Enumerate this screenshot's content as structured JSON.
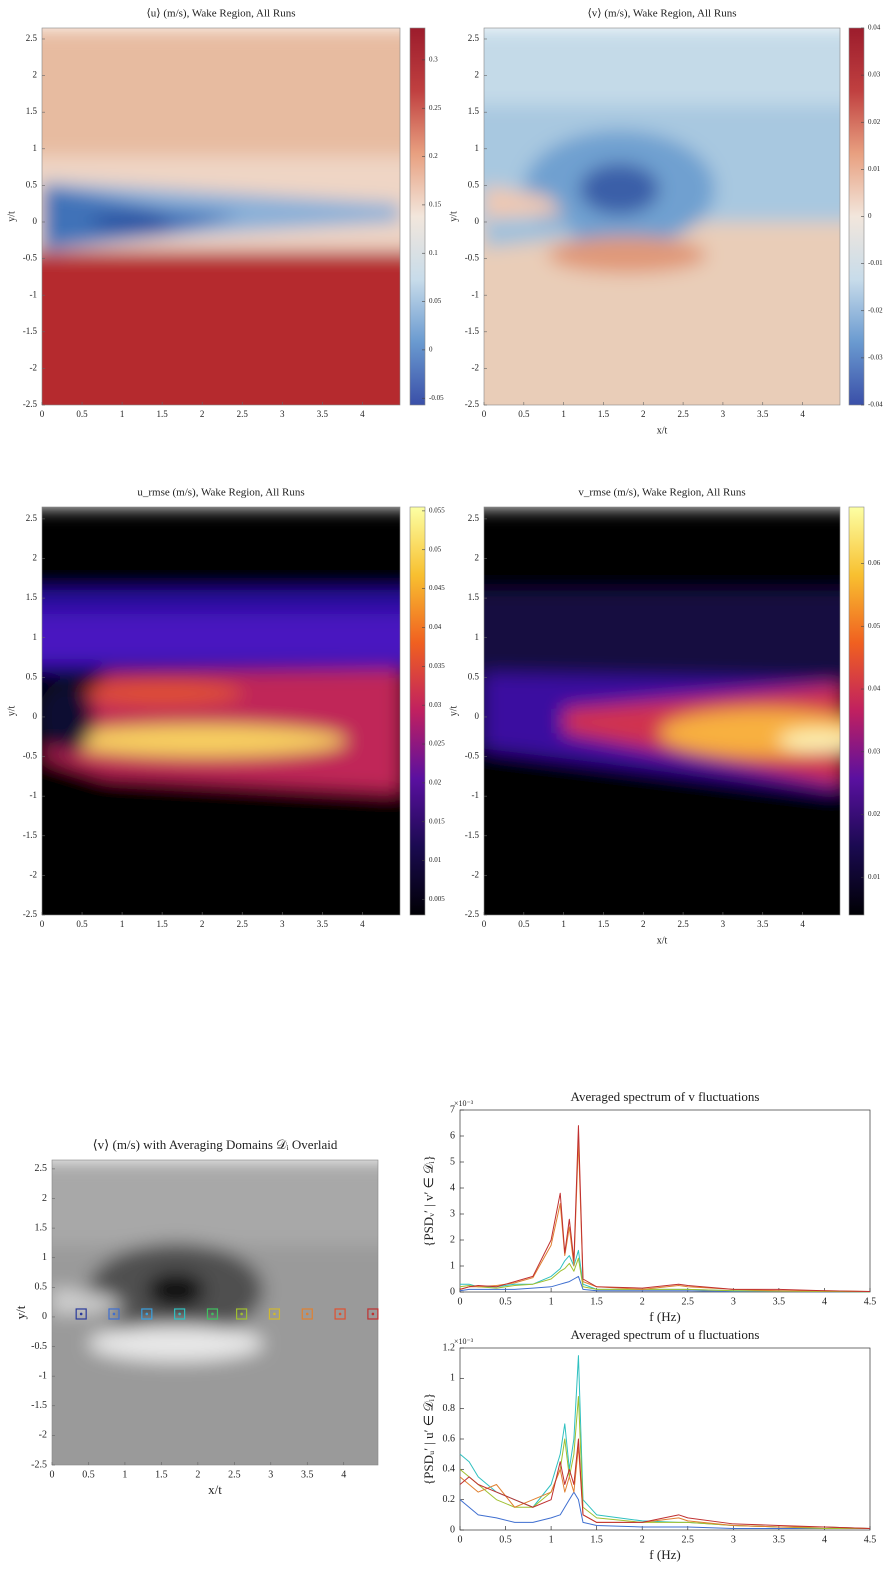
{
  "chart_data": [
    {
      "type": "heatmap",
      "title": "⟨u⟩ (m/s), Wake Region, All Runs",
      "ylabel": "y/t",
      "colormap": "coolwarm",
      "xlim": [
        0,
        4.47
      ],
      "ylim": [
        -2.5,
        2.65
      ],
      "xticks": [
        0,
        0.5,
        1,
        1.5,
        2,
        2.5,
        3,
        3.5,
        4
      ],
      "yticks": [
        -2.5,
        -2,
        -1.5,
        -1,
        -0.5,
        0,
        0.5,
        1,
        1.5,
        2,
        2.5
      ],
      "colorbar": true,
      "clim": [
        -0.057,
        0.333
      ],
      "cticks": [
        -0.05,
        0,
        0.05,
        0.1,
        0.15,
        0.2,
        0.25,
        0.3
      ]
    },
    {
      "type": "heatmap",
      "title": "⟨v⟩ (m/s), Wake Region, All Runs",
      "xlabel": "x/t",
      "ylabel": "y/t",
      "colormap": "coolwarm",
      "xlim": [
        0,
        4.47
      ],
      "ylim": [
        -2.5,
        2.65
      ],
      "xticks": [
        0,
        0.5,
        1,
        1.5,
        2,
        2.5,
        3,
        3.5,
        4
      ],
      "yticks": [
        -2.5,
        -2,
        -1.5,
        -1,
        -0.5,
        0,
        0.5,
        1,
        1.5,
        2,
        2.5
      ],
      "colorbar": true,
      "clim": [
        -0.04,
        0.04
      ],
      "cticks": [
        -0.04,
        -0.03,
        -0.02,
        -0.01,
        0,
        0.01,
        0.02,
        0.03,
        0.04
      ]
    },
    {
      "type": "heatmap",
      "title": "u_rmse (m/s), Wake Region, All Runs",
      "ylabel": "y/t",
      "colormap": "inferno",
      "xlim": [
        0,
        4.47
      ],
      "ylim": [
        -2.5,
        2.65
      ],
      "xticks": [
        0,
        0.5,
        1,
        1.5,
        2,
        2.5,
        3,
        3.5,
        4
      ],
      "yticks": [
        -2.5,
        -2,
        -1.5,
        -1,
        -0.5,
        0,
        0.5,
        1,
        1.5,
        2,
        2.5
      ],
      "colorbar": true,
      "clim": [
        0.003,
        0.0555
      ],
      "cticks": [
        0.005,
        0.01,
        0.015,
        0.02,
        0.025,
        0.03,
        0.035,
        0.04,
        0.045,
        0.05,
        0.055
      ]
    },
    {
      "type": "heatmap",
      "title": "v_rmse (m/s), Wake Region, All Runs",
      "xlabel": "x/t",
      "ylabel": "y/t",
      "colormap": "inferno",
      "xlim": [
        0,
        4.47
      ],
      "ylim": [
        -2.5,
        2.65
      ],
      "xticks": [
        0,
        0.5,
        1,
        1.5,
        2,
        2.5,
        3,
        3.5,
        4
      ],
      "yticks": [
        -2.5,
        -2,
        -1.5,
        -1,
        -0.5,
        0,
        0.5,
        1,
        1.5,
        2,
        2.5
      ],
      "colorbar": true,
      "clim": [
        0.004,
        0.069
      ],
      "cticks": [
        0.01,
        0.02,
        0.03,
        0.04,
        0.05,
        0.06
      ]
    },
    {
      "type": "heatmap",
      "title": "⟨v⟩ (m/s) with Averaging Domains 𝒟ᵢ Overlaid",
      "xlabel": "x/t",
      "ylabel": "y/t",
      "colormap": "gray",
      "xlim": [
        0,
        4.47
      ],
      "ylim": [
        -2.5,
        2.65
      ],
      "xticks": [
        0,
        0.5,
        1,
        1.5,
        2,
        2.5,
        3,
        3.5,
        4
      ],
      "yticks": [
        -2.5,
        -2,
        -1.5,
        -1,
        -0.5,
        0,
        0.5,
        1,
        1.5,
        2,
        2.5
      ],
      "colorbar": false,
      "domains": {
        "x": [
          0.4,
          0.85,
          1.3,
          1.75,
          2.2,
          2.6,
          3.05,
          3.5,
          3.95,
          4.4
        ],
        "y": [
          0.05,
          0.05,
          0.05,
          0.05,
          0.05,
          0.05,
          0.05,
          0.05,
          0.05,
          0.05
        ],
        "colors": [
          "#2a3a9c",
          "#3f6fd0",
          "#3aa0e0",
          "#2fc0c0",
          "#40c060",
          "#a0c030",
          "#d0b830",
          "#e08030",
          "#e05030",
          "#c03030"
        ]
      }
    },
    {
      "type": "line",
      "title": "Averaged spectrum of v fluctuations",
      "xlabel": "f (Hz)",
      "ylabel": "{PSDᵥ′ | v′ ∈ 𝒟ᵢ}",
      "multiplier": "×10⁻³",
      "xlim": [
        0,
        4.5
      ],
      "ylim": [
        0,
        7
      ],
      "xticks": [
        0,
        0.5,
        1,
        1.5,
        2,
        2.5,
        3,
        3.5,
        4,
        4.5
      ],
      "yticks": [
        0,
        1,
        2,
        3,
        4,
        5,
        6,
        7
      ],
      "x": [
        0,
        0.1,
        0.2,
        0.4,
        0.6,
        0.8,
        1.0,
        1.1,
        1.15,
        1.2,
        1.25,
        1.3,
        1.35,
        1.5,
        2,
        2.4,
        2.5,
        3,
        3.5,
        4,
        4.5
      ],
      "series": [
        {
          "color": "#3f6fd0",
          "values": [
            0.05,
            0.1,
            0.1,
            0.1,
            0.1,
            0.15,
            0.2,
            0.3,
            0.35,
            0.4,
            0.5,
            0.6,
            0.1,
            0.05,
            0.05,
            0.05,
            0.05,
            0.02,
            0.02,
            0.01,
            0.01
          ]
        },
        {
          "color": "#2fc0c0",
          "values": [
            0.3,
            0.3,
            0.2,
            0.2,
            0.3,
            0.3,
            0.6,
            0.9,
            1.2,
            1.4,
            1.0,
            1.6,
            0.3,
            0.1,
            0.1,
            0.1,
            0.1,
            0.05,
            0.05,
            0.02,
            0.01
          ]
        },
        {
          "color": "#a0c030",
          "values": [
            0.2,
            0.25,
            0.2,
            0.15,
            0.25,
            0.3,
            0.5,
            0.8,
            0.9,
            1.1,
            0.8,
            1.3,
            0.2,
            0.1,
            0.1,
            0.1,
            0.1,
            0.05,
            0.03,
            0.02,
            0.01
          ]
        },
        {
          "color": "#e08030",
          "values": [
            0.1,
            0.2,
            0.2,
            0.25,
            0.35,
            0.55,
            1.8,
            3.4,
            1.4,
            2.5,
            1.0,
            5.8,
            0.4,
            0.2,
            0.1,
            0.25,
            0.2,
            0.1,
            0.05,
            0.05,
            0.02
          ]
        },
        {
          "color": "#c03030",
          "values": [
            0.1,
            0.2,
            0.25,
            0.2,
            0.4,
            0.6,
            2.0,
            3.8,
            1.5,
            2.8,
            1.2,
            6.4,
            0.5,
            0.2,
            0.15,
            0.3,
            0.25,
            0.1,
            0.1,
            0.05,
            0.02
          ]
        }
      ]
    },
    {
      "type": "line",
      "title": "Averaged spectrum of u fluctuations",
      "xlabel": "f (Hz)",
      "ylabel": "{PSDᵤ′ | u′ ∈ 𝒟ᵢ}",
      "multiplier": "×10⁻³",
      "xlim": [
        0,
        4.5
      ],
      "ylim": [
        0,
        1.2
      ],
      "xticks": [
        0,
        0.5,
        1,
        1.5,
        2,
        2.5,
        3,
        3.5,
        4,
        4.5
      ],
      "yticks": [
        0,
        0.2,
        0.4,
        0.6,
        0.8,
        1,
        1.2
      ],
      "x": [
        0,
        0.1,
        0.2,
        0.4,
        0.6,
        0.8,
        1.0,
        1.1,
        1.15,
        1.2,
        1.25,
        1.3,
        1.35,
        1.5,
        2,
        2.4,
        2.5,
        3,
        3.5,
        4,
        4.5
      ],
      "series": [
        {
          "color": "#3f6fd0",
          "values": [
            0.2,
            0.15,
            0.1,
            0.08,
            0.05,
            0.05,
            0.08,
            0.1,
            0.15,
            0.2,
            0.25,
            0.2,
            0.05,
            0.03,
            0.02,
            0.02,
            0.02,
            0.01,
            0.01,
            0.01,
            0.01
          ]
        },
        {
          "color": "#2fc0c0",
          "values": [
            0.5,
            0.45,
            0.35,
            0.25,
            0.2,
            0.15,
            0.3,
            0.5,
            0.7,
            0.4,
            0.6,
            1.15,
            0.2,
            0.1,
            0.06,
            0.05,
            0.05,
            0.03,
            0.02,
            0.02,
            0.01
          ]
        },
        {
          "color": "#a0c030",
          "values": [
            0.4,
            0.35,
            0.3,
            0.2,
            0.15,
            0.15,
            0.25,
            0.4,
            0.6,
            0.35,
            0.5,
            0.88,
            0.15,
            0.08,
            0.05,
            0.05,
            0.05,
            0.03,
            0.02,
            0.01,
            0.01
          ]
        },
        {
          "color": "#e08030",
          "values": [
            0.35,
            0.3,
            0.25,
            0.3,
            0.15,
            0.2,
            0.25,
            0.4,
            0.25,
            0.35,
            0.25,
            0.55,
            0.1,
            0.05,
            0.05,
            0.08,
            0.06,
            0.03,
            0.02,
            0.02,
            0.01
          ]
        },
        {
          "color": "#c03030",
          "values": [
            0.3,
            0.35,
            0.3,
            0.25,
            0.2,
            0.15,
            0.2,
            0.45,
            0.3,
            0.4,
            0.3,
            0.6,
            0.1,
            0.05,
            0.05,
            0.1,
            0.08,
            0.04,
            0.03,
            0.02,
            0.01
          ]
        }
      ]
    }
  ]
}
